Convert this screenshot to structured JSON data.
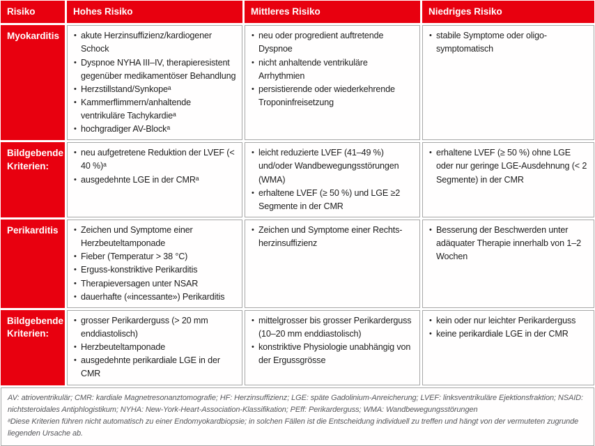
{
  "table": {
    "header": {
      "col0": "Risiko",
      "col1": "Hohes Risiko",
      "col2": "Mittleres Risiko",
      "col3": "Niedriges Risiko"
    },
    "rows": [
      {
        "key": "myokarditis",
        "label": "Myokarditis",
        "high": [
          "akute Herzinsuffizienz/kardiogener Schock",
          "Dyspnoe NYHA III–IV, therapieresistent gegenüber medikamentöser Behandlung",
          "Herzstillstand/Synkopeᵃ",
          "Kammerflimmern/anhaltende ventrikuläre Tachykardieᵃ",
          "hochgradiger AV-Blockᵃ"
        ],
        "medium": [
          "neu oder progredient auftretende Dyspnoe",
          "nicht anhaltende ventrikuläre Arrhythmien",
          "persistierende oder wiederkehrende Troponinfreisetzung"
        ],
        "low": [
          "stabile Symptome oder oligo-symptomatisch"
        ]
      },
      {
        "key": "myokarditis-bildgebende-kriterien",
        "label": "Bildgebende Kriterien:",
        "high": [
          "neu aufgetretene Reduktion der LVEF (< 40 %)ᵃ",
          "ausgedehnte LGE in der CMRᵃ"
        ],
        "medium": [
          "leicht reduzierte LVEF (41–49 %) und/oder Wandbewegungsstörungen (WMA)",
          "erhaltene LVEF (≥ 50 %) und LGE ≥2 Segmente in der CMR"
        ],
        "low": [
          "erhaltene LVEF (≥ 50 %) ohne LGE oder nur geringe LGE-Ausdehnung (< 2 Segmente) in der CMR"
        ]
      },
      {
        "key": "perikarditis",
        "label": "Perikarditis",
        "high": [
          "Zeichen und Symptome einer Herzbeuteltamponade",
          "Fieber (Temperatur > 38 °C)",
          "Erguss-konstriktive Perikarditis",
          "Therapieversagen unter NSAR",
          "dauerhafte («incessante») Perikarditis"
        ],
        "medium": [
          "Zeichen und Symptome einer Rechts-herzinsuffizienz"
        ],
        "low": [
          "Besserung der Beschwerden unter adäquater Therapie innerhalb von 1–2 Wochen"
        ]
      },
      {
        "key": "perikarditis-bildgebende-kriterien",
        "label": "Bildgebende Kriterien:",
        "high": [
          "grosser Perikarderguss (> 20 mm enddiastolisch)",
          "Herzbeuteltamponade",
          "ausgedehnte perikardiale LGE in der CMR"
        ],
        "medium": [
          "mittelgrosser bis grosser Perikarderguss (10–20 mm enddiastolisch)",
          "konstriktive Physiologie unabhängig von der Ergussgrösse"
        ],
        "low": [
          "kein oder nur leichter Perikarderguss",
          "keine perikardiale LGE in der CMR"
        ]
      }
    ]
  },
  "footer": {
    "lines": [
      "AV: atrioventrikulär; CMR: kardiale Magnetresonanztomografie; HF: Herzinsuffizienz; LGE: späte Gadolinium-Anreicherung; LVEF: linksventrikuläre Ejektionsfraktion; NSAID: nichtsteroidales Antiphlogistikum; NYHA: New-York-Heart-Association-Klassifikation; PEff: Perikarderguss; WMA: Wandbewegungsstörungen",
      "ᵃDiese Kriterien führen nicht automatisch zu einer Endomyokardbiopsie; in solchen Fällen ist die Entscheidung individuell zu treffen und hängt von der vermuteten zugrunde liegenden Ursache ab."
    ]
  },
  "colors": {
    "brand_red": "#e8000f",
    "cell_border": "#a6a6a6",
    "body_text": "#1c1c1c",
    "footer_text": "#55565a"
  }
}
